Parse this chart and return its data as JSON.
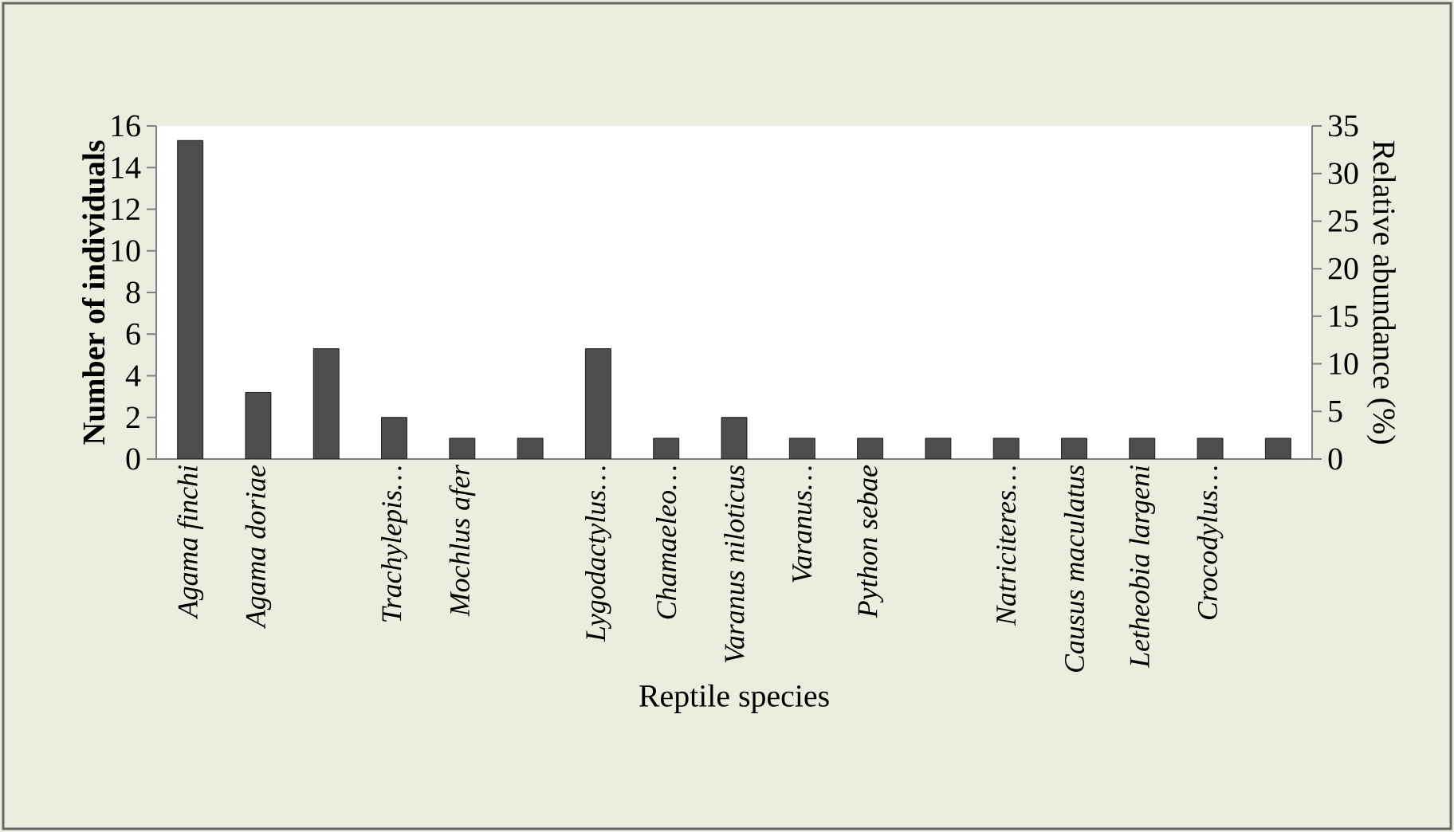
{
  "chart_data": {
    "type": "bar",
    "xlabel": "Reptile species",
    "ylabel": "Number of individuals",
    "y2label": "Relative abundance (%)",
    "categories": [
      "Agama finchi",
      "Agama doriae",
      null,
      "Trachylepis…",
      "Mochlus afer",
      null,
      "Lygodactylus…",
      "Chamaeleo…",
      "Varanus niloticus",
      "Varanus…",
      "Python sebae",
      null,
      "Natriciteres…",
      "Causus maculatus",
      "Letheobia largeni",
      "Crocodylus…",
      null
    ],
    "values": [
      15.3,
      3.2,
      5.3,
      2,
      1,
      1,
      5.3,
      1,
      2,
      1,
      1,
      1,
      1,
      1,
      1,
      1,
      1
    ],
    "color": "#4d4d4d",
    "ylim": [
      0,
      16
    ],
    "yticks": [
      0,
      2,
      4,
      6,
      8,
      10,
      12,
      14,
      16
    ],
    "y2lim": [
      0,
      35
    ],
    "y2ticks": [
      0,
      5,
      10,
      15,
      20,
      25,
      30,
      35
    ]
  }
}
